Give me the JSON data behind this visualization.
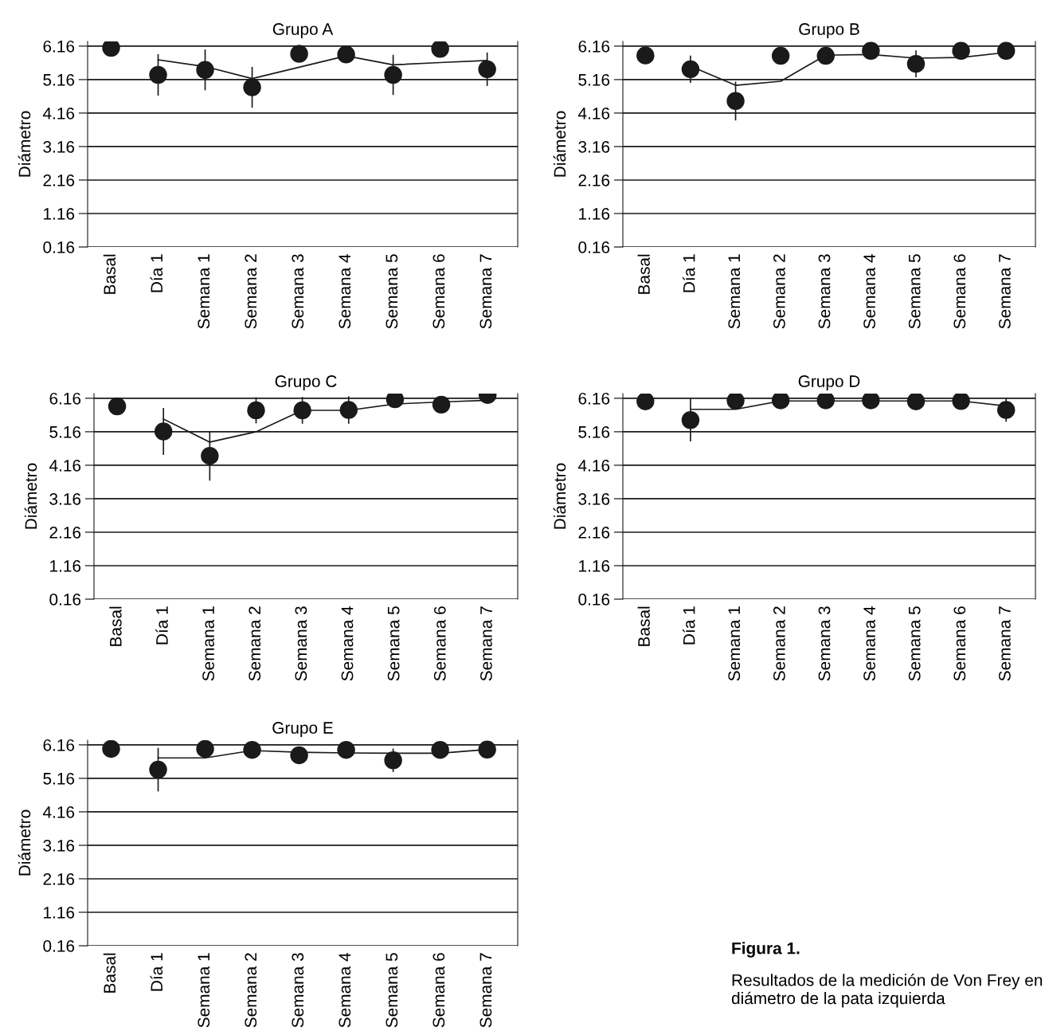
{
  "chart_data": [
    {
      "type": "scatter",
      "title": "Grupo A",
      "ylabel": "Diámetro",
      "categories": [
        "Basal",
        "Día 1",
        "Semana 1",
        "Semana 2",
        "Semana 3",
        "Semana 4",
        "Semana 5",
        "Semana 6",
        "Semana 7"
      ],
      "ylim": [
        0.16,
        6.3
      ],
      "yticks": [
        0.16,
        1.16,
        2.16,
        3.16,
        4.16,
        5.16,
        6.16
      ],
      "grid": "y",
      "legend": false,
      "series": [
        {
          "type": "line",
          "marker": "none",
          "color": "#1a1a1a",
          "values": [
            null,
            5.75,
            5.55,
            5.19,
            5.53,
            5.87,
            5.6,
            5.67,
            5.73
          ]
        },
        {
          "type": "scatter",
          "marker": "circle",
          "color": "#1a1a1a",
          "values": [
            6.11,
            5.3,
            5.45,
            4.93,
            5.93,
            5.91,
            5.3,
            6.08,
            5.47
          ],
          "errors": [
            null,
            0.62,
            0.61,
            0.61,
            null,
            null,
            0.6,
            null,
            0.5
          ]
        }
      ]
    },
    {
      "type": "scatter",
      "title": "Grupo B",
      "ylabel": "Diámetro",
      "categories": [
        "Basal",
        "Día 1",
        "Semana 1",
        "Semana 2",
        "Semana 3",
        "Semana 4",
        "Semana 5",
        "Semana 6",
        "Semana 7"
      ],
      "ylim": [
        0.16,
        6.3
      ],
      "yticks": [
        0.16,
        1.16,
        2.16,
        3.16,
        4.16,
        5.16,
        6.16
      ],
      "grid": "y",
      "legend": false,
      "series": [
        {
          "type": "line",
          "marker": "none",
          "color": "#1a1a1a",
          "values": [
            null,
            5.56,
            4.99,
            5.11,
            5.89,
            5.91,
            5.8,
            5.82,
            5.97
          ]
        },
        {
          "type": "scatter",
          "marker": "circle",
          "color": "#1a1a1a",
          "values": [
            5.88,
            5.47,
            4.52,
            5.87,
            5.87,
            6.02,
            5.63,
            6.02,
            6.02
          ],
          "errors": [
            null,
            0.41,
            0.58,
            null,
            null,
            null,
            0.4,
            null,
            null
          ]
        }
      ]
    },
    {
      "type": "scatter",
      "title": "Grupo C",
      "ylabel": "Diámetro",
      "categories": [
        "Basal",
        "Día 1",
        "Semana 1",
        "Semana 2",
        "Semana 3",
        "Semana 4",
        "Semana 5",
        "Semana 6",
        "Semana 7"
      ],
      "ylim": [
        0.16,
        6.3
      ],
      "yticks": [
        0.16,
        1.16,
        2.16,
        3.16,
        4.16,
        5.16,
        6.16
      ],
      "grid": "y",
      "legend": false,
      "series": [
        {
          "type": "line",
          "marker": "none",
          "color": "#1a1a1a",
          "values": [
            null,
            5.54,
            4.85,
            5.16,
            5.8,
            5.8,
            5.99,
            6.05,
            6.1
          ]
        },
        {
          "type": "scatter",
          "marker": "circle",
          "color": "#1a1a1a",
          "values": [
            5.92,
            5.17,
            4.44,
            5.8,
            5.8,
            5.81,
            6.13,
            5.97,
            6.26
          ],
          "errors": [
            null,
            0.7,
            0.74,
            0.39,
            0.4,
            0.41,
            null,
            null,
            null
          ]
        }
      ]
    },
    {
      "type": "scatter",
      "title": "Grupo D",
      "ylabel": "Diámetro",
      "categories": [
        "Basal",
        "Día 1",
        "Semana 1",
        "Semana 2",
        "Semana 3",
        "Semana 4",
        "Semana 5",
        "Semana 6",
        "Semana 7"
      ],
      "ylim": [
        0.16,
        6.3
      ],
      "yticks": [
        0.16,
        1.16,
        2.16,
        3.16,
        4.16,
        5.16,
        6.16
      ],
      "grid": "y",
      "legend": false,
      "series": [
        {
          "type": "line",
          "marker": "none",
          "color": "#1a1a1a",
          "values": [
            null,
            5.83,
            5.83,
            6.08,
            6.08,
            6.08,
            6.08,
            6.08,
            5.93
          ]
        },
        {
          "type": "scatter",
          "marker": "circle",
          "color": "#1a1a1a",
          "values": [
            6.07,
            5.51,
            6.09,
            6.1,
            6.1,
            6.1,
            6.07,
            6.08,
            5.81
          ],
          "errors": [
            null,
            0.64,
            null,
            null,
            null,
            null,
            null,
            null,
            0.35
          ]
        }
      ]
    },
    {
      "type": "scatter",
      "title": "Grupo E",
      "ylabel": "Diámetro",
      "categories": [
        "Basal",
        "Día 1",
        "Semana 1",
        "Semana 2",
        "Semana 3",
        "Semana 4",
        "Semana 5",
        "Semana 6",
        "Semana 7"
      ],
      "ylim": [
        0.16,
        6.3
      ],
      "yticks": [
        0.16,
        1.16,
        2.16,
        3.16,
        4.16,
        5.16,
        6.16
      ],
      "grid": "y",
      "legend": false,
      "series": [
        {
          "type": "line",
          "marker": "none",
          "color": "#1a1a1a",
          "values": [
            null,
            5.77,
            5.77,
            5.99,
            5.94,
            5.92,
            5.91,
            5.91,
            6.02
          ]
        },
        {
          "type": "scatter",
          "marker": "circle",
          "color": "#1a1a1a",
          "values": [
            6.04,
            5.42,
            6.04,
            6.01,
            5.85,
            6.01,
            5.7,
            6.01,
            6.02
          ],
          "errors": [
            null,
            0.65,
            null,
            null,
            null,
            null,
            0.35,
            null,
            null
          ]
        }
      ]
    },
    {
      "type": "other",
      "title": "Figura 1.",
      "annotations": [
        "Resultados de la medición de Von Frey en diámetro de la pata izquierda"
      ]
    }
  ]
}
